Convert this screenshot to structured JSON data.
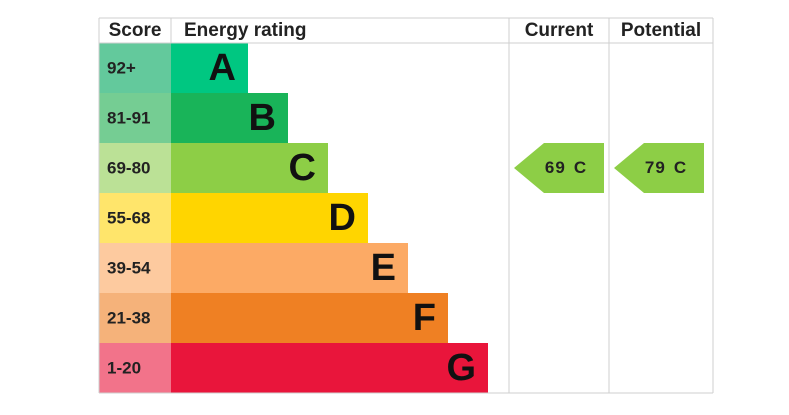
{
  "header": {
    "score": "Score",
    "rating": "Energy rating",
    "current": "Current",
    "potential": "Potential"
  },
  "rows": [
    {
      "score": "92+",
      "letter": "A",
      "color": "#00c781",
      "score_color": "#63c99c"
    },
    {
      "score": "81-91",
      "letter": "B",
      "color": "#19b459",
      "score_color": "#75cd93"
    },
    {
      "score": "69-80",
      "letter": "C",
      "color": "#8dce46",
      "score_color": "#bbe196"
    },
    {
      "score": "55-68",
      "letter": "D",
      "color": "#ffd500",
      "score_color": "#ffe56b"
    },
    {
      "score": "39-54",
      "letter": "E",
      "color": "#fcaa65",
      "score_color": "#fdca9f"
    },
    {
      "score": "21-38",
      "letter": "F",
      "color": "#ef8023",
      "score_color": "#f5b27a"
    },
    {
      "score": "1-20",
      "letter": "G",
      "color": "#e9153b",
      "score_color": "#f2738a"
    }
  ],
  "current": {
    "value": 69,
    "band": "C"
  },
  "potential": {
    "value": 79,
    "band": "C"
  }
}
